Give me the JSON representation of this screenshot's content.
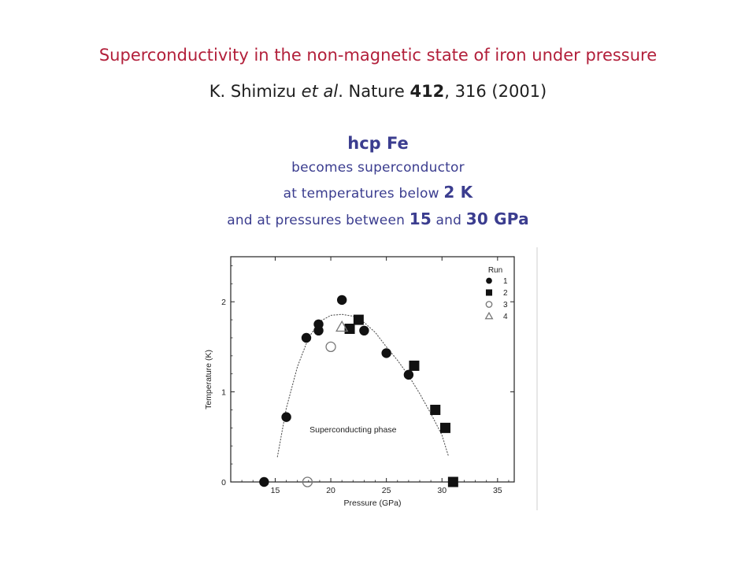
{
  "header": {
    "title": "Superconductivity in the non-magnetic state of iron under pressure",
    "citation": {
      "authors": "K. Shimizu ",
      "etal": "et al",
      "journal": ". Nature ",
      "volume": "412",
      "pages_year": ", 316 (2001)"
    }
  },
  "summary": {
    "headline": "hcp Fe",
    "line1": "becomes superconductor",
    "line2_pre": "at temperatures below ",
    "line2_val": "2 K",
    "line3_pre": "and at pressures between ",
    "line3_val1": "15",
    "line3_mid": " and ",
    "line3_val2": "30 GPa"
  },
  "chart_data": {
    "type": "scatter",
    "xlabel": "Pressure (GPa)",
    "ylabel": "Temperature (K)",
    "xlim": [
      11,
      36.5
    ],
    "ylim": [
      0,
      2.5
    ],
    "xticks": [
      15,
      20,
      25,
      30,
      35
    ],
    "yticks": [
      0,
      1,
      2
    ],
    "legend_title": "Run",
    "legend_position": "top-right",
    "annotation": "Superconducting phase",
    "series": [
      {
        "name": "1",
        "marker": "filled-circle",
        "points": [
          [
            14.0,
            0.0
          ],
          [
            16.0,
            0.72
          ],
          [
            17.8,
            1.6
          ],
          [
            18.9,
            1.68
          ],
          [
            18.9,
            1.75
          ],
          [
            21.0,
            2.02
          ],
          [
            23.0,
            1.68
          ],
          [
            25.0,
            1.43
          ],
          [
            27.0,
            1.19
          ]
        ]
      },
      {
        "name": "2",
        "marker": "filled-square",
        "points": [
          [
            21.7,
            1.7
          ],
          [
            22.5,
            1.8
          ],
          [
            27.5,
            1.29
          ],
          [
            29.4,
            0.8
          ],
          [
            30.3,
            0.6
          ],
          [
            31.0,
            0.0
          ]
        ]
      },
      {
        "name": "3",
        "marker": "open-circle",
        "points": [
          [
            20.0,
            1.5
          ],
          [
            17.9,
            0.0
          ]
        ]
      },
      {
        "name": "4",
        "marker": "open-triangle",
        "points": [
          [
            21.0,
            1.72
          ]
        ]
      }
    ],
    "fit_curve": {
      "style": "dotted",
      "points": [
        [
          15.2,
          0.28
        ],
        [
          16.0,
          0.82
        ],
        [
          17.0,
          1.28
        ],
        [
          18.0,
          1.6
        ],
        [
          19.0,
          1.78
        ],
        [
          20.0,
          1.85
        ],
        [
          21.0,
          1.86
        ],
        [
          22.0,
          1.84
        ],
        [
          23.0,
          1.77
        ],
        [
          24.0,
          1.66
        ],
        [
          25.0,
          1.5
        ],
        [
          26.0,
          1.35
        ],
        [
          27.0,
          1.18
        ],
        [
          28.0,
          0.98
        ],
        [
          29.0,
          0.76
        ],
        [
          30.0,
          0.52
        ],
        [
          30.6,
          0.28
        ]
      ]
    }
  }
}
